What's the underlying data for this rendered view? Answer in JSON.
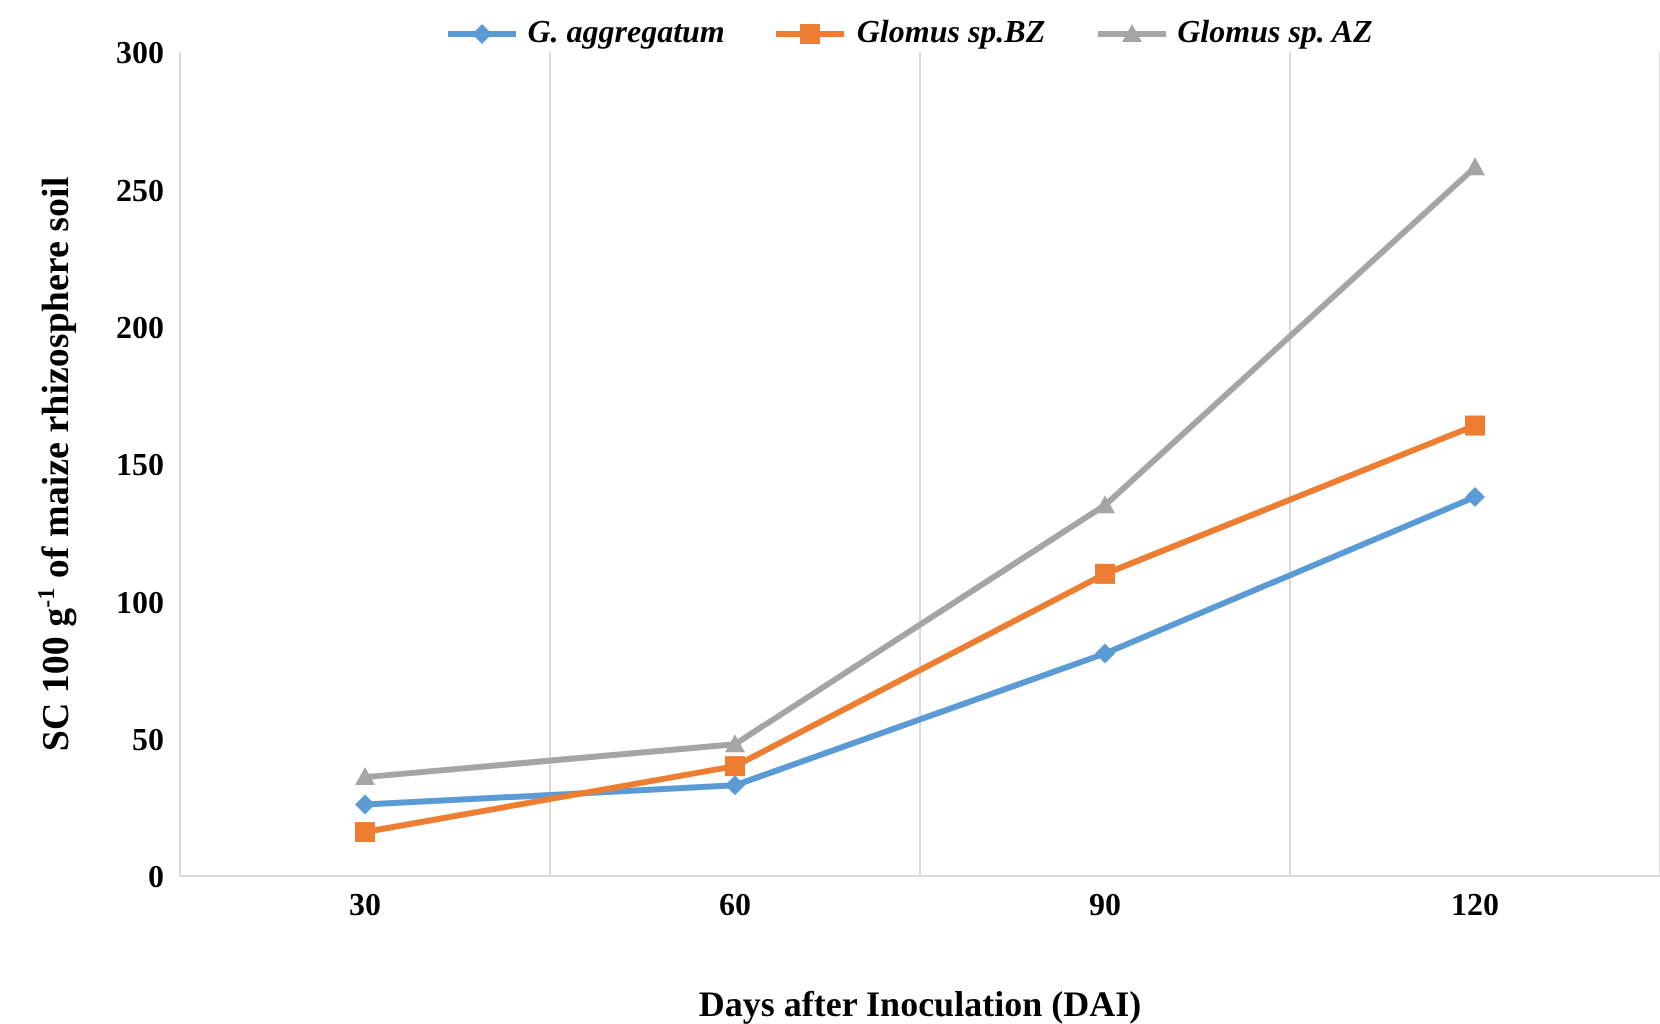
{
  "chart_data": {
    "type": "line",
    "categories": [
      "30",
      "60",
      "90",
      "120"
    ],
    "series": [
      {
        "name": "G. aggregatum",
        "color": "#5b9bd5",
        "marker": "diamond",
        "values": [
          26,
          33,
          81,
          138
        ]
      },
      {
        "name": "Glomus sp.BZ",
        "color": "#ed7d31",
        "marker": "square",
        "values": [
          16,
          40,
          110,
          164
        ]
      },
      {
        "name": "Glomus sp. AZ",
        "color": "#a5a5a5",
        "marker": "triangle",
        "values": [
          36,
          48,
          135,
          258
        ]
      }
    ],
    "xlabel": "Days after Inoculation (DAI)",
    "ylabel": "SC 100 g$^{-1}$ of maize rhizosphere soil",
    "ylim": [
      0,
      300
    ],
    "yticks": [
      0,
      50,
      100,
      150,
      200,
      250,
      300
    ],
    "grid": "x",
    "legend": "top"
  }
}
